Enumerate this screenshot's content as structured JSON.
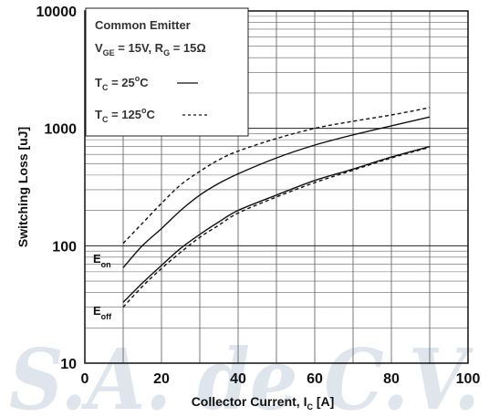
{
  "chart_data": {
    "type": "line",
    "xlabel": {
      "main": "Collector Current, I",
      "sub": "C",
      "tail": " [A]"
    },
    "ylabel": "Switching Loss [uJ]",
    "xlim": [
      0,
      100
    ],
    "ylim": [
      10,
      10000
    ],
    "yscale": "log",
    "xticks": [
      "0",
      "20",
      "40",
      "60",
      "80",
      "100"
    ],
    "yticks": [
      "10",
      "100",
      "1000",
      "10000"
    ],
    "grid": true,
    "watermark": "S.A. de C.V.",
    "annotation": {
      "line1": "Common Emitter",
      "line2_parts": [
        "V",
        "GE",
        " = 15V, R",
        "G",
        " = 15Ω"
      ],
      "tc25_parts": [
        "T",
        "C",
        " = 25",
        "o",
        "C"
      ],
      "tc125_parts": [
        "T",
        "C",
        " = 125",
        "o",
        "C"
      ]
    },
    "curve_labels": {
      "eon": [
        "E",
        "on"
      ],
      "eoff": [
        "E",
        "off"
      ]
    },
    "series": [
      {
        "name": "Eon @ 25°C",
        "style": "solid",
        "x": [
          10,
          15,
          20,
          25,
          30,
          35,
          40,
          50,
          60,
          70,
          80,
          90
        ],
        "y": [
          65,
          100,
          140,
          200,
          270,
          340,
          410,
          560,
          720,
          880,
          1050,
          1250
        ]
      },
      {
        "name": "Eon @ 125°C",
        "style": "dashed",
        "x": [
          10,
          15,
          20,
          25,
          30,
          35,
          40,
          50,
          60,
          70,
          80,
          90
        ],
        "y": [
          105,
          155,
          230,
          330,
          430,
          540,
          640,
          820,
          1000,
          1150,
          1300,
          1500
        ]
      },
      {
        "name": "Eoff @ 25°C",
        "style": "solid",
        "x": [
          10,
          15,
          20,
          25,
          30,
          35,
          40,
          50,
          60,
          70,
          80,
          90
        ],
        "y": [
          33,
          48,
          68,
          95,
          125,
          160,
          200,
          270,
          360,
          450,
          570,
          700
        ]
      },
      {
        "name": "Eoff @ 125°C",
        "style": "dashed",
        "x": [
          10,
          15,
          20,
          25,
          30,
          35,
          40,
          50,
          60,
          70,
          80,
          90
        ],
        "y": [
          30,
          45,
          64,
          88,
          118,
          150,
          190,
          260,
          345,
          440,
          560,
          690
        ]
      }
    ]
  }
}
